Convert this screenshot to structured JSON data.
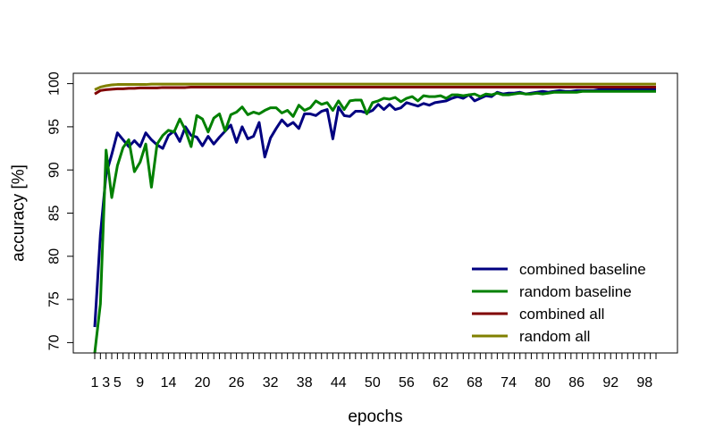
{
  "chart_data": {
    "type": "line",
    "xlabel": "epochs",
    "ylabel": "accuracy [%]",
    "xlim": [
      1,
      100
    ],
    "ylim": [
      68.8,
      101.2
    ],
    "x_ticks": [
      1,
      3,
      5,
      9,
      14,
      20,
      26,
      32,
      38,
      44,
      50,
      56,
      62,
      68,
      74,
      80,
      86,
      92,
      98
    ],
    "y_ticks": [
      70,
      75,
      80,
      85,
      90,
      95,
      100
    ],
    "grid": false,
    "legend_position": "bottom-right",
    "x": [
      1,
      2,
      3,
      4,
      5,
      6,
      7,
      8,
      9,
      10,
      11,
      12,
      13,
      14,
      15,
      16,
      17,
      18,
      19,
      20,
      21,
      22,
      23,
      24,
      25,
      26,
      27,
      28,
      29,
      30,
      31,
      32,
      33,
      34,
      35,
      36,
      37,
      38,
      39,
      40,
      41,
      42,
      43,
      44,
      45,
      46,
      47,
      48,
      49,
      50,
      51,
      52,
      53,
      54,
      55,
      56,
      57,
      58,
      59,
      60,
      61,
      62,
      63,
      64,
      65,
      66,
      67,
      68,
      69,
      70,
      71,
      72,
      73,
      74,
      75,
      76,
      77,
      78,
      79,
      80,
      81,
      82,
      83,
      84,
      85,
      86,
      87,
      88,
      89,
      90,
      91,
      92,
      93,
      94,
      95,
      96,
      97,
      98,
      99,
      100
    ],
    "series": [
      {
        "name": "combined baseline",
        "color": "#000080",
        "values": [
          71.8,
          82.5,
          89.5,
          91.8,
          94.3,
          93.5,
          92.7,
          93.4,
          92.7,
          94.3,
          93.5,
          92.9,
          92.5,
          94.0,
          94.5,
          93.3,
          95.0,
          94.0,
          93.8,
          92.8,
          93.9,
          93.0,
          93.8,
          94.5,
          95.2,
          93.2,
          95.0,
          93.6,
          93.9,
          95.5,
          91.5,
          93.7,
          94.8,
          95.8,
          95.1,
          95.5,
          94.8,
          96.5,
          96.5,
          96.3,
          96.8,
          97.0,
          93.6,
          97.3,
          96.3,
          96.2,
          96.8,
          96.8,
          96.6,
          96.9,
          97.6,
          97.0,
          97.6,
          97.0,
          97.2,
          97.8,
          97.6,
          97.4,
          97.7,
          97.5,
          97.8,
          97.9,
          98.0,
          98.3,
          98.5,
          98.3,
          98.7,
          98.0,
          98.3,
          98.6,
          98.5,
          99.0,
          98.8,
          98.9,
          98.9,
          99.0,
          98.8,
          98.9,
          99.0,
          99.1,
          99.0,
          99.1,
          99.2,
          99.1,
          99.1,
          99.2,
          99.2,
          99.2,
          99.2,
          99.3,
          99.3,
          99.3,
          99.3,
          99.3,
          99.3,
          99.3,
          99.3,
          99.3,
          99.3,
          99.3
        ]
      },
      {
        "name": "random baseline",
        "color": "#008000",
        "values": [
          68.8,
          74.5,
          92.3,
          86.8,
          90.5,
          92.6,
          93.5,
          89.8,
          90.9,
          93.0,
          88.0,
          93.0,
          94.0,
          94.6,
          94.4,
          95.9,
          94.6,
          92.7,
          96.3,
          95.9,
          94.4,
          96.0,
          96.5,
          94.5,
          96.4,
          96.7,
          97.3,
          96.4,
          96.7,
          96.5,
          96.9,
          97.2,
          97.2,
          96.6,
          96.9,
          96.2,
          97.5,
          96.9,
          97.2,
          98.0,
          97.6,
          97.8,
          96.9,
          98.0,
          97.0,
          98.0,
          98.1,
          98.1,
          96.5,
          97.8,
          98.0,
          98.3,
          98.2,
          98.4,
          97.9,
          98.3,
          98.5,
          98.0,
          98.6,
          98.5,
          98.5,
          98.6,
          98.3,
          98.7,
          98.7,
          98.6,
          98.7,
          98.8,
          98.5,
          98.8,
          98.7,
          98.9,
          98.7,
          98.7,
          98.8,
          98.9,
          98.8,
          98.8,
          98.9,
          98.8,
          98.9,
          99.0,
          99.0,
          99.0,
          99.0,
          99.0,
          99.1,
          99.1,
          99.1,
          99.1,
          99.1,
          99.1,
          99.1,
          99.1,
          99.1,
          99.1,
          99.1,
          99.1,
          99.1,
          99.1
        ]
      },
      {
        "name": "combined all",
        "color": "#800000",
        "values": [
          98.8,
          99.2,
          99.3,
          99.35,
          99.4,
          99.4,
          99.45,
          99.45,
          99.5,
          99.5,
          99.5,
          99.5,
          99.55,
          99.55,
          99.55,
          99.55,
          99.55,
          99.6,
          99.6,
          99.6,
          99.6,
          99.6,
          99.6,
          99.6,
          99.6,
          99.6,
          99.6,
          99.6,
          99.6,
          99.6,
          99.6,
          99.6,
          99.6,
          99.6,
          99.6,
          99.6,
          99.6,
          99.6,
          99.6,
          99.6,
          99.6,
          99.6,
          99.6,
          99.6,
          99.6,
          99.6,
          99.6,
          99.6,
          99.6,
          99.6,
          99.6,
          99.6,
          99.6,
          99.6,
          99.6,
          99.6,
          99.6,
          99.6,
          99.6,
          99.6,
          99.6,
          99.6,
          99.6,
          99.6,
          99.6,
          99.6,
          99.6,
          99.6,
          99.6,
          99.6,
          99.6,
          99.6,
          99.6,
          99.6,
          99.6,
          99.6,
          99.6,
          99.6,
          99.6,
          99.6,
          99.6,
          99.6,
          99.6,
          99.6,
          99.6,
          99.6,
          99.6,
          99.6,
          99.6,
          99.6,
          99.6,
          99.6,
          99.6,
          99.6,
          99.6,
          99.6,
          99.6,
          99.6,
          99.6,
          99.6
        ]
      },
      {
        "name": "random all",
        "color": "#808000",
        "values": [
          99.3,
          99.6,
          99.75,
          99.85,
          99.9,
          99.9,
          99.9,
          99.9,
          99.9,
          99.9,
          99.95,
          99.95,
          99.95,
          99.95,
          99.95,
          99.95,
          99.95,
          99.95,
          99.95,
          99.95,
          99.95,
          99.95,
          99.95,
          99.95,
          99.95,
          99.95,
          99.95,
          99.95,
          99.95,
          99.95,
          99.95,
          99.95,
          99.95,
          99.95,
          99.95,
          99.95,
          99.95,
          99.95,
          99.95,
          99.95,
          99.95,
          99.95,
          99.95,
          99.95,
          99.95,
          99.95,
          99.95,
          99.95,
          99.95,
          99.95,
          99.95,
          99.95,
          99.95,
          99.95,
          99.95,
          99.95,
          99.95,
          99.95,
          99.95,
          99.95,
          99.95,
          99.95,
          99.95,
          99.95,
          99.95,
          99.95,
          99.95,
          99.95,
          99.95,
          99.95,
          99.95,
          99.95,
          99.95,
          99.95,
          99.95,
          99.95,
          99.95,
          99.95,
          99.95,
          99.95,
          99.95,
          99.95,
          99.95,
          99.95,
          99.95,
          99.95,
          99.95,
          99.95,
          99.95,
          99.95,
          99.95,
          99.95,
          99.95,
          99.95,
          99.95,
          99.95,
          99.95,
          99.95,
          99.95,
          99.95
        ]
      }
    ]
  }
}
